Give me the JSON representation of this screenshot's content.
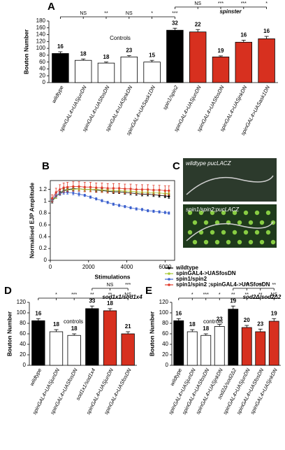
{
  "chart_data": [
    {
      "panel": "A",
      "type": "bar",
      "ylabel": "Bouton Number",
      "ylim": [
        0,
        180
      ],
      "yticks": [
        0,
        20,
        40,
        60,
        80,
        100,
        120,
        140,
        160,
        180
      ],
      "categories": [
        "wildtype",
        "spinGAL4>UASjunDN",
        "spinGAL4>UASfosDN",
        "spinGAL4>UASjnkDN",
        "spinGAL4>UASask1DN",
        "spin1/spin2",
        "spinGAL4>UASjunDN",
        "spinGAL4>UASfosDN",
        "spinGAL4>UASjnkDN",
        "spinGAL4>UASask1DN"
      ],
      "values": [
        85,
        65,
        57,
        75,
        60,
        153,
        148,
        75,
        118,
        128
      ],
      "errors": [
        5,
        4,
        3,
        4,
        5,
        6,
        7,
        3,
        6,
        7
      ],
      "colors": [
        "#000000",
        "#ffffff",
        "#ffffff",
        "#ffffff",
        "#ffffff",
        "#000000",
        "#d7301f",
        "#d7301f",
        "#d7301f",
        "#d7301f"
      ],
      "sample_sizes": [
        16,
        18,
        18,
        23,
        15,
        32,
        22,
        19,
        16,
        16
      ],
      "group_labels": [
        "Controls",
        "spinster"
      ],
      "significance": [
        null,
        "NS",
        "**",
        "NS",
        "*",
        "***",
        null,
        null,
        null,
        null
      ],
      "significance_upper": [
        "NS",
        "***",
        "***",
        "*"
      ]
    },
    {
      "panel": "B",
      "type": "line",
      "xlabel": "Stimulations",
      "ylabel": "Normalised EJP Amplitude",
      "xlim": [
        0,
        6500
      ],
      "xticks": [
        0,
        2000,
        4000,
        6000
      ],
      "ylim": [
        0,
        1.35
      ],
      "yticks": [
        0,
        0.2,
        0.4,
        0.6,
        0.8,
        1.0,
        1.2
      ],
      "x": [
        100,
        300,
        500,
        700,
        900,
        1200,
        1500,
        1800,
        2100,
        2400,
        2700,
        3000,
        3300,
        3600,
        3900,
        4200,
        4500,
        4800,
        5100,
        5400,
        5700,
        6000,
        6200
      ],
      "series": [
        {
          "name": "wildtype",
          "color": "#000000",
          "values": [
            1.0,
            1.08,
            1.14,
            1.18,
            1.2,
            1.21,
            1.21,
            1.2,
            1.2,
            1.19,
            1.18,
            1.17,
            1.16,
            1.16,
            1.15,
            1.14,
            1.13,
            1.12,
            1.12,
            1.11,
            1.1,
            1.09,
            1.08
          ],
          "errors": [
            0.03,
            0.03,
            0.03,
            0.03,
            0.03,
            0.03,
            0.03,
            0.03,
            0.03,
            0.03,
            0.03,
            0.03,
            0.03,
            0.03,
            0.03,
            0.03,
            0.03,
            0.03,
            0.03,
            0.03,
            0.03,
            0.03,
            0.03
          ]
        },
        {
          "name": "spinGAL4->UASfosDN",
          "color": "#a6c935",
          "values": [
            1.02,
            1.08,
            1.13,
            1.17,
            1.19,
            1.2,
            1.21,
            1.2,
            1.2,
            1.2,
            1.19,
            1.19,
            1.18,
            1.18,
            1.17,
            1.17,
            1.16,
            1.15,
            1.15,
            1.14,
            1.14,
            1.13,
            1.13
          ],
          "errors": [
            0.03,
            0.03,
            0.03,
            0.03,
            0.03,
            0.03,
            0.03,
            0.03,
            0.03,
            0.03,
            0.03,
            0.03,
            0.03,
            0.03,
            0.03,
            0.03,
            0.03,
            0.03,
            0.03,
            0.03,
            0.03,
            0.03,
            0.03
          ]
        },
        {
          "name": "spin1/spin2",
          "color": "#3a5fcd",
          "values": [
            1.03,
            1.1,
            1.13,
            1.15,
            1.15,
            1.14,
            1.12,
            1.1,
            1.07,
            1.04,
            1.01,
            0.98,
            0.95,
            0.93,
            0.91,
            0.89,
            0.87,
            0.86,
            0.84,
            0.83,
            0.82,
            0.81,
            0.8
          ],
          "errors": [
            0.03,
            0.03,
            0.03,
            0.03,
            0.03,
            0.03,
            0.03,
            0.02,
            0.02,
            0.02,
            0.02,
            0.02,
            0.02,
            0.02,
            0.02,
            0.02,
            0.02,
            0.02,
            0.02,
            0.02,
            0.02,
            0.02,
            0.02
          ]
        },
        {
          "name": "spin1/spin2 ;spinGAL4->UASfosDN",
          "color": "#e03a2a",
          "values": [
            1.05,
            1.15,
            1.2,
            1.23,
            1.24,
            1.25,
            1.25,
            1.24,
            1.24,
            1.23,
            1.23,
            1.22,
            1.22,
            1.22,
            1.21,
            1.21,
            1.2,
            1.2,
            1.2,
            1.19,
            1.19,
            1.18,
            1.18
          ],
          "errors": [
            0.06,
            0.07,
            0.08,
            0.08,
            0.08,
            0.08,
            0.08,
            0.08,
            0.08,
            0.08,
            0.08,
            0.08,
            0.08,
            0.08,
            0.08,
            0.08,
            0.08,
            0.08,
            0.08,
            0.08,
            0.08,
            0.08,
            0.08
          ]
        }
      ]
    },
    {
      "panel": "C",
      "type": "image",
      "labels": [
        "wildtype pucLACZ",
        "spin1/spin2;pucLACZ"
      ]
    },
    {
      "panel": "D",
      "type": "bar",
      "ylabel": "Bouton Number",
      "ylim": [
        0,
        120
      ],
      "yticks": [
        0,
        20,
        40,
        60,
        80,
        100,
        120
      ],
      "categories": [
        "wildtype",
        "spinGAL4>UASjunDN",
        "spinGAL4>UASfosDN",
        "sod1x1/sod1x4",
        "spinGAL4>UASjunDN",
        "spinGAL4>UASfosDN"
      ],
      "values": [
        85,
        64,
        57,
        108,
        104,
        60
      ],
      "errors": [
        4,
        4,
        3,
        5,
        4,
        4
      ],
      "colors": [
        "#000000",
        "#ffffff",
        "#ffffff",
        "#000000",
        "#d7301f",
        "#d7301f"
      ],
      "sample_sizes": [
        16,
        18,
        18,
        33,
        18,
        21
      ],
      "group_labels": [
        "controls",
        "sod1x1/sod1x4"
      ],
      "significance": [
        null,
        "*",
        "***",
        "**",
        "**",
        "NS"
      ],
      "significance_upper": [
        "NS",
        "***"
      ]
    },
    {
      "panel": "E",
      "type": "bar",
      "ylabel": "Bouton Number",
      "ylim": [
        0,
        120
      ],
      "yticks": [
        0,
        20,
        40,
        60,
        80,
        100,
        120
      ],
      "categories": [
        "wildtype",
        "spinGAL4>UASjunDN",
        "spinGAL4>UASfosDN",
        "spinGAL4>UASjnkDN",
        "sod2Δ/sod2Δ2",
        "spinGAL4>UASjunDN",
        "spinGAL4>UASfosDN",
        "spinGAL4>UASjnkDN"
      ],
      "values": [
        85,
        64,
        57,
        74,
        107,
        72,
        64,
        84
      ],
      "errors": [
        4,
        4,
        3,
        4,
        6,
        4,
        5,
        5
      ],
      "colors": [
        "#000000",
        "#ffffff",
        "#ffffff",
        "#ffffff",
        "#000000",
        "#d7301f",
        "#d7301f",
        "#d7301f"
      ],
      "sample_sizes": [
        16,
        18,
        18,
        23,
        19,
        20,
        23,
        19
      ],
      "group_labels": [
        "controls",
        "sod2Δ/sod2Δ2"
      ],
      "significance": [
        null,
        "*",
        "***",
        "*",
        "**",
        "**",
        "**",
        "NS"
      ],
      "significance_upper": [
        "***",
        "***",
        "**"
      ]
    }
  ]
}
